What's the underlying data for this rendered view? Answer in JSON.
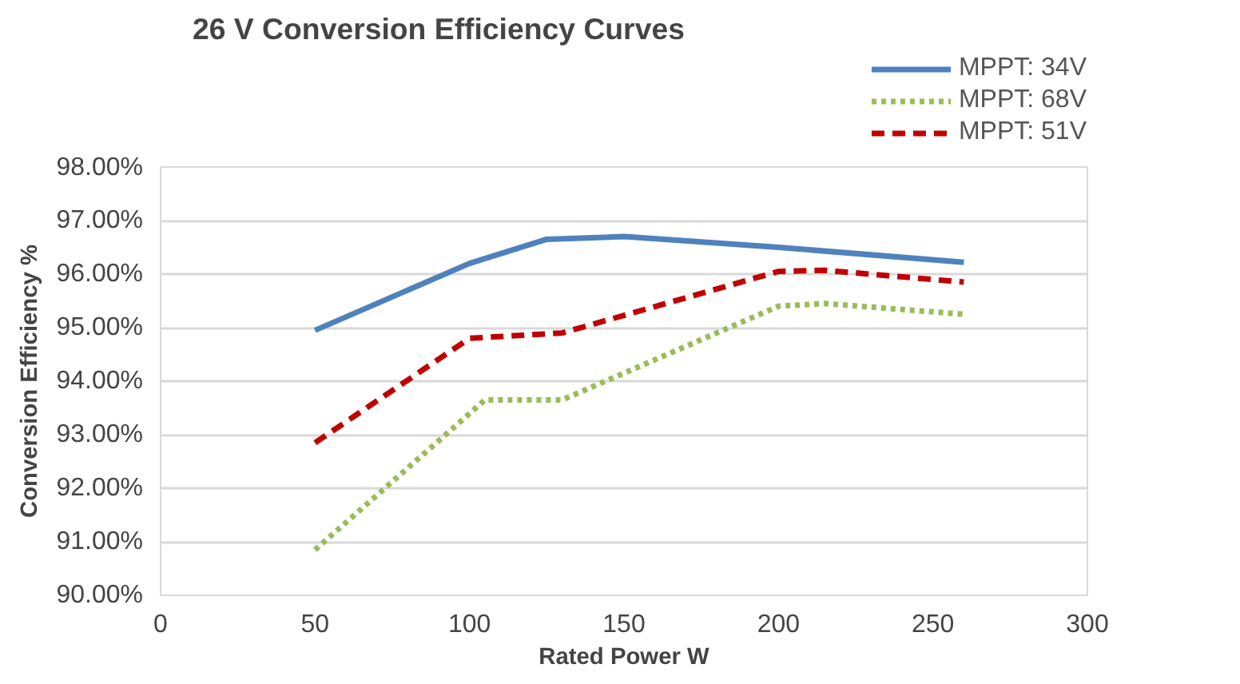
{
  "chart_data": {
    "type": "line",
    "title": "26 V Conversion Efficiency Curves",
    "xlabel": "Rated Power W",
    "ylabel": "Conversion Efficiency %",
    "xlim": [
      0,
      300
    ],
    "xticks": [
      0,
      50,
      100,
      150,
      200,
      250,
      300
    ],
    "ylim": [
      90,
      98
    ],
    "yticks": [
      {
        "value": 90,
        "label": "90.00%"
      },
      {
        "value": 91,
        "label": "91.00%"
      },
      {
        "value": 92,
        "label": "92.00%"
      },
      {
        "value": 93,
        "label": "93.00%"
      },
      {
        "value": 94,
        "label": "94.00%"
      },
      {
        "value": 95,
        "label": "95.00%"
      },
      {
        "value": 96,
        "label": "96.00%"
      },
      {
        "value": 97,
        "label": "97.00%"
      },
      {
        "value": 98,
        "label": "98.00%"
      }
    ],
    "grid": "y",
    "legend": "top right",
    "marker": "none",
    "series": [
      {
        "name": "MPPT: 34V",
        "color": "#4f81bd",
        "line_style": "solid",
        "x": [
          50,
          100,
          125,
          150,
          200,
          260
        ],
        "values": [
          94.95,
          96.2,
          96.65,
          96.7,
          96.5,
          96.22
        ]
      },
      {
        "name": "MPPT: 68V",
        "color": "#9bbb59",
        "line_style": "dotted",
        "x": [
          50,
          105,
          130,
          200,
          215,
          260
        ],
        "values": [
          90.85,
          93.65,
          93.65,
          95.4,
          95.45,
          95.25
        ]
      },
      {
        "name": "MPPT: 51V",
        "color": "#c00000",
        "line_style": "dashed",
        "x": [
          50,
          100,
          130,
          200,
          215,
          260
        ],
        "values": [
          92.85,
          94.8,
          94.9,
          96.05,
          96.07,
          95.85
        ]
      }
    ]
  }
}
